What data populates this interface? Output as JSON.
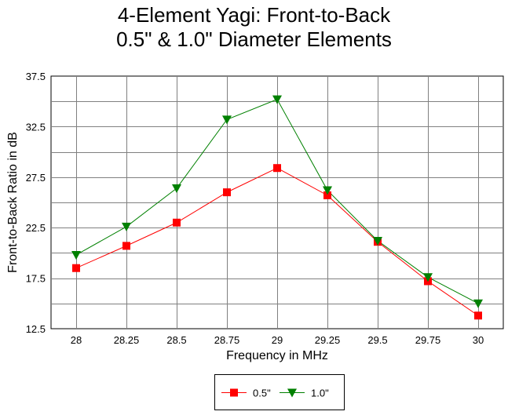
{
  "chart_data": {
    "type": "line",
    "title": "4-Element Yagi:  Front-to-Back",
    "subtitle": "0.5\" & 1.0\" Diameter Elements",
    "xlabel": "Frequency in MHz",
    "ylabel": "Front-to-Back Ratio in dB",
    "categories": [
      "28",
      "28.25",
      "28.5",
      "28.75",
      "29",
      "29.25",
      "29.5",
      "29.75",
      "30"
    ],
    "yticks": [
      "12.5",
      "17.5",
      "22.5",
      "27.5",
      "32.5",
      "37.5"
    ],
    "ylim": [
      12.5,
      37.5
    ],
    "grid": true,
    "legend_position": "bottom-center",
    "series": [
      {
        "name": "0.5\"",
        "color": "#ff0000",
        "marker": "square",
        "values": [
          18.5,
          20.7,
          23.0,
          26.0,
          28.4,
          25.7,
          21.1,
          17.2,
          13.8
        ]
      },
      {
        "name": "1.0\"",
        "color": "#008000",
        "marker": "triangle-down",
        "values": [
          19.8,
          22.6,
          26.4,
          33.2,
          35.2,
          26.2,
          21.2,
          17.6,
          15.0
        ]
      }
    ]
  }
}
